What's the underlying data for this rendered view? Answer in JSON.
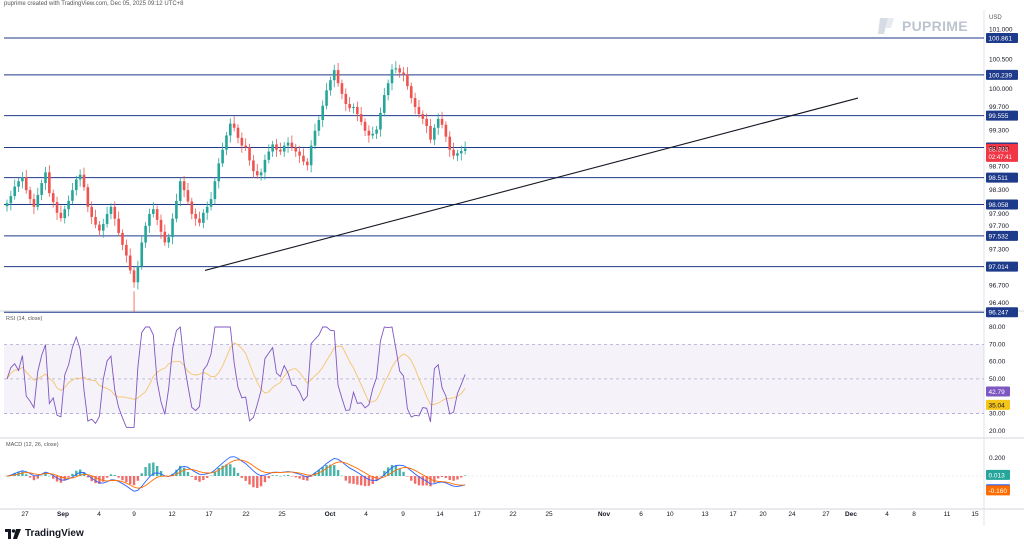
{
  "caption": "puprime created with TradingView.com, Dec 05, 2025 09:12 UTC+8",
  "brand": {
    "logo_text": "PUPRIME",
    "footer_text": "TradingView"
  },
  "colors": {
    "up": "#26a69a",
    "down": "#ef5350",
    "level_line": "#1e3a8a",
    "label_bg": "#1e3a8a",
    "current_price_bg": "#f23645",
    "rsi_line": "#7e57c2",
    "rsi_ma": "#f5c56b",
    "macd_line": "#2962ff",
    "signal_line": "#ff6d00"
  },
  "chart_data": [
    {
      "type": "candlestick",
      "currency": "USD",
      "y_ticks": [
        "101.000",
        "100.500",
        "100.000",
        "99.700",
        "99.300",
        "99.000",
        "98.700",
        "98.300",
        "97.900",
        "97.700",
        "97.300",
        "96.700",
        "96.400"
      ],
      "ylim": [
        96.2,
        101.3
      ],
      "x_ticks": [
        "27",
        "Sep",
        "4",
        "9",
        "12",
        "17",
        "22",
        "25",
        "Oct",
        "4",
        "9",
        "14",
        "17",
        "22",
        "25",
        "Nov",
        "6",
        "10",
        "13",
        "17",
        "20",
        "24",
        "27",
        "Dec",
        "4",
        "8",
        "11",
        "15"
      ],
      "level_labels": [
        "100.861",
        "100.239",
        "99.555",
        "99.018",
        "98.511",
        "98.058",
        "97.532",
        "97.014",
        "96.247"
      ],
      "levels": [
        100.861,
        100.239,
        99.555,
        99.018,
        98.511,
        98.058,
        97.532,
        97.014,
        96.247
      ],
      "current_price": "98.995",
      "countdown": "02:47:41",
      "trendline": {
        "from": [
          "Sep 17",
          96.95
        ],
        "to": [
          "Nov 27",
          99.85
        ]
      },
      "close": [
        98.08,
        98.2,
        98.36,
        98.45,
        98.52,
        98.3,
        98.15,
        98.02,
        98.22,
        98.42,
        98.6,
        98.25,
        98.1,
        97.92,
        97.83,
        97.98,
        98.12,
        98.3,
        98.48,
        98.56,
        98.35,
        98.02,
        97.85,
        97.72,
        97.62,
        97.73,
        97.9,
        98.02,
        97.82,
        97.58,
        97.38,
        97.2,
        96.95,
        96.75,
        97.02,
        97.42,
        97.7,
        97.9,
        97.98,
        97.8,
        97.6,
        97.42,
        97.51,
        97.82,
        98.12,
        98.45,
        98.3,
        98.11,
        97.9,
        97.82,
        97.75,
        97.92,
        98.02,
        98.15,
        98.45,
        98.75,
        98.98,
        99.22,
        99.42,
        99.35,
        99.18,
        99.05,
        99.02,
        98.8,
        98.62,
        98.55,
        98.6,
        98.81,
        98.95,
        99.07,
        98.98,
        98.95,
        99.05,
        99.1,
        99.02,
        98.95,
        98.88,
        98.78,
        98.72,
        99.05,
        99.3,
        99.48,
        99.72,
        99.98,
        100.15,
        100.32,
        100.1,
        99.92,
        99.75,
        99.68,
        99.7,
        99.58,
        99.45,
        99.3,
        99.22,
        99.25,
        99.32,
        99.6,
        99.9,
        100.1,
        100.33,
        100.35,
        100.28,
        100.25,
        100.05,
        99.85,
        99.7,
        99.58,
        99.5,
        99.38,
        99.15,
        99.35,
        99.5,
        99.4,
        99.2,
        98.98,
        98.88,
        98.92,
        98.96,
        99.0
      ],
      "rsi": {
        "label": "RSI (14, close)",
        "value_a": "42.79",
        "value_b": "35.04",
        "ticks": [
          "80.00",
          "70.00",
          "60.00",
          "50.00",
          "30.00",
          "20.00"
        ],
        "band": [
          30,
          70
        ],
        "ylim": [
          15,
          85
        ]
      },
      "macd": {
        "label": "MACD (12, 26, close)",
        "value_a": "0.013",
        "value_b": "-0.147",
        "value_c": "-0.160",
        "ticks": [
          "0.200"
        ]
      }
    }
  ]
}
